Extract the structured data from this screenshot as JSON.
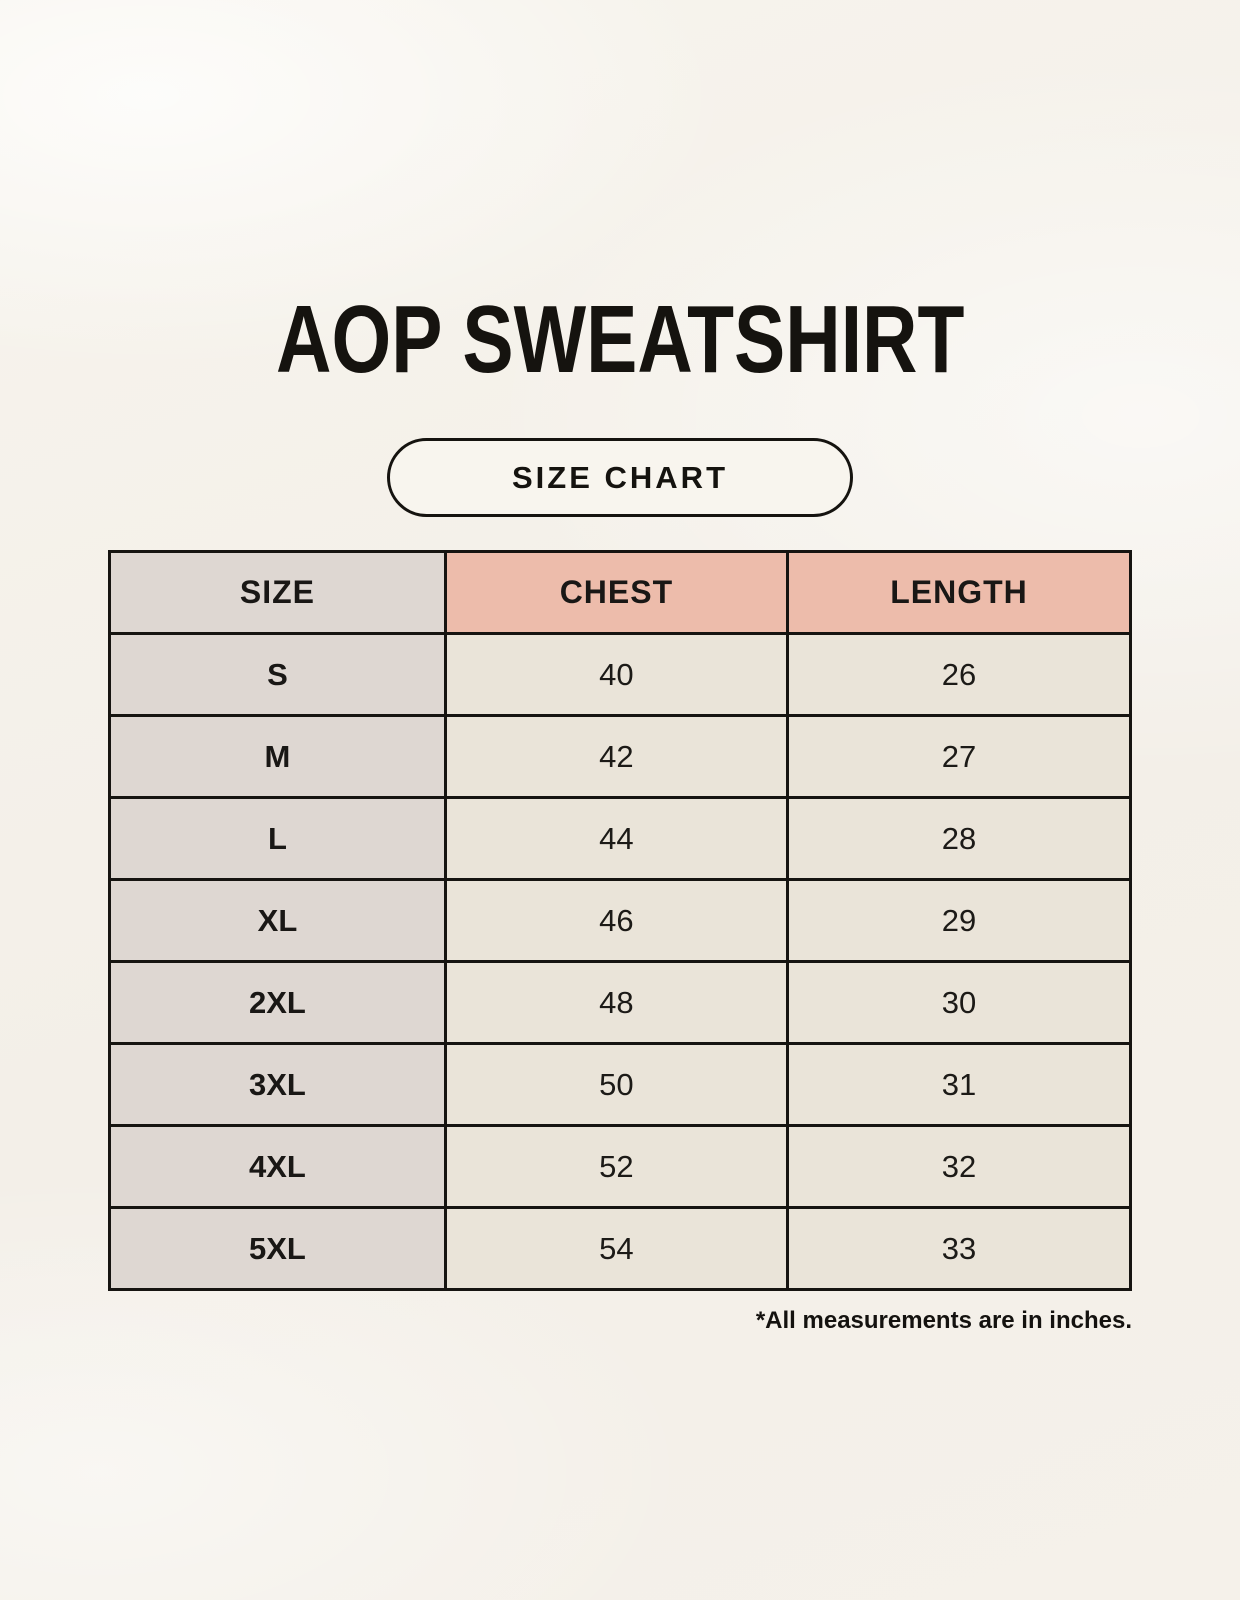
{
  "page": {
    "title": "AOP SWEATSHIRT",
    "badge_label": "SIZE CHART",
    "footnote": "*All measurements are in inches."
  },
  "colors": {
    "background": "#f5f1ea",
    "header_accent_salmon": "#edbcab",
    "size_column_gray": "#ded7d2",
    "value_cell_beige": "#eae4d9",
    "border_black": "#161411",
    "text_black": "#15130f"
  },
  "chart_data": {
    "type": "table",
    "title": "AOP SWEATSHIRT",
    "subtitle": "SIZE CHART",
    "columns": [
      "SIZE",
      "CHEST",
      "LENGTH"
    ],
    "rows": [
      [
        "S",
        "40",
        "26"
      ],
      [
        "M",
        "42",
        "27"
      ],
      [
        "L",
        "44",
        "28"
      ],
      [
        "XL",
        "46",
        "29"
      ],
      [
        "2XL",
        "48",
        "30"
      ],
      [
        "3XL",
        "50",
        "31"
      ],
      [
        "4XL",
        "52",
        "32"
      ],
      [
        "5XL",
        "54",
        "33"
      ]
    ],
    "units_note": "*All measurements are in inches.",
    "layout": {
      "header_fill": [
        "gray",
        "salmon",
        "salmon"
      ],
      "grid": true
    }
  }
}
